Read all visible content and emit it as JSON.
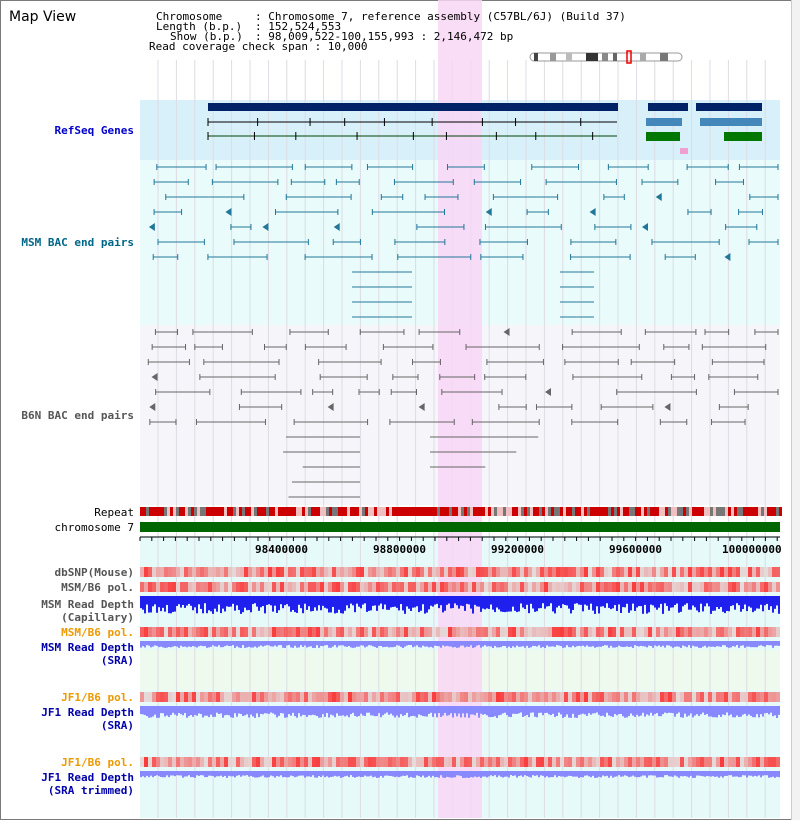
{
  "title": "Map View",
  "info": {
    "chromosome_key": "Chromosome",
    "chromosome_val": ": Chromosome 7, reference assembly (C57BL/6J) (Build 37)",
    "length_key": "Length (b.p.)",
    "length_val": ": 152,524,553",
    "show_key": "Show (b.p.)",
    "show_val": ": 98,009,522-100,155,993 : 2,146,472 bp",
    "coverage": "Read coverage check span : 10,000"
  },
  "tracks": {
    "refseq": "RefSeq Genes",
    "msm_bac": "MSM BAC end pairs",
    "b6n_bac": "B6N BAC end pairs",
    "repeat": "Repeat",
    "chromosome": "chromosome 7",
    "dbsnp": "dbSNP(Mouse)",
    "msm_b6_pol_1": "MSM/B6 pol.",
    "msm_read_depth_cap_1": "MSM Read Depth",
    "msm_read_depth_cap_2": "(Capillary)",
    "msm_b6_pol_2": "MSM/B6 pol.",
    "msm_read_depth_sra_1": "MSM Read Depth",
    "msm_read_depth_sra_2": "(SRA)",
    "jf1_b6_pol_1": "JF1/B6 pol.",
    "jf1_read_depth_sra_1": "JF1 Read Depth",
    "jf1_read_depth_sra_2": "(SRA)",
    "jf1_b6_pol_2": "JF1/B6 pol.",
    "jf1_read_depth_trim_1": "JF1 Read Depth",
    "jf1_read_depth_trim_2": "(SRA trimmed)"
  },
  "axis_ticks": [
    "98400000",
    "98800000",
    "99200000",
    "99600000",
    "100000000"
  ],
  "colors": {
    "refseq_label": "#0000cc",
    "msm_label": "#006688",
    "b6n_label": "#555555",
    "orange_label": "#ee9900",
    "blue_label": "#0000aa",
    "highlight": "#f8d6f4",
    "chrom_green": "#006600",
    "depth_blue": "#2020ee",
    "depth_light": "#8888ff"
  }
}
